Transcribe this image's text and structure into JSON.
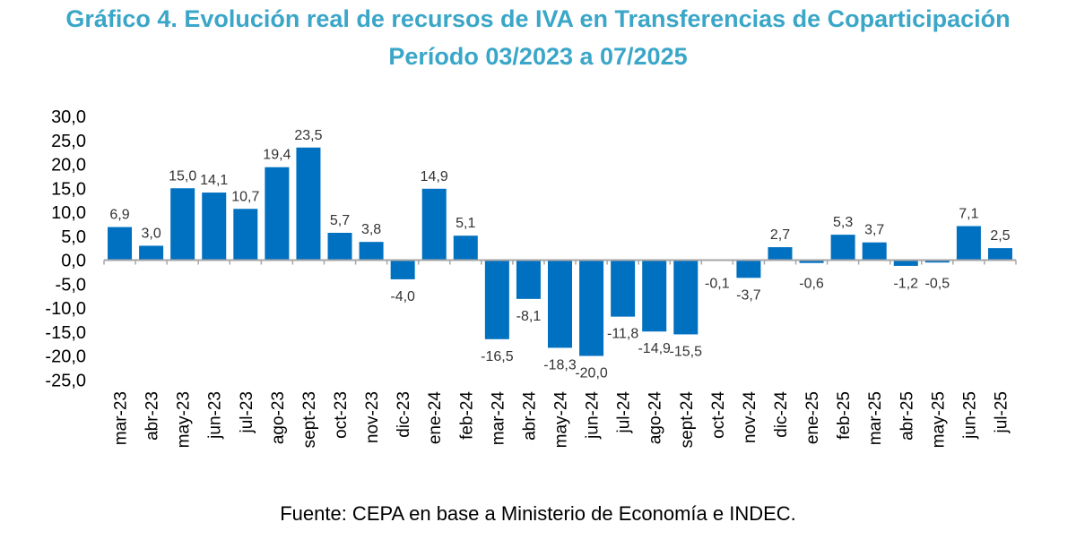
{
  "header": {
    "title_line1": "Gráfico 4. Evolución real de recursos de IVA en Transferencias de Coparticipación",
    "title_line2": "Período 03/2023 a 07/2025"
  },
  "footer": {
    "source": "Fuente: CEPA en base a Ministerio de Economía e INDEC."
  },
  "colors": {
    "bar": "#0070c0",
    "title": "#3aa6c8",
    "axis": "#a6a6a6"
  },
  "chart_data": {
    "type": "bar",
    "title": "Gráfico 4. Evolución real de recursos de IVA en Transferencias de Coparticipación",
    "subtitle": "Período 03/2023 a 07/2025",
    "xlabel": "",
    "ylabel": "",
    "ylim": [
      -25,
      30
    ],
    "yticks": [
      30,
      25,
      20,
      15,
      10,
      5,
      0,
      -5,
      -10,
      -15,
      -20,
      -25
    ],
    "ytick_labels": [
      "30,0",
      "25,0",
      "20,0",
      "15,0",
      "10,0",
      "5,0",
      "0,0",
      "-5,0",
      "-10,0",
      "-15,0",
      "-20,0",
      "-25,0"
    ],
    "grid": false,
    "legend": "none",
    "categories": [
      "mar-23",
      "abr-23",
      "may-23",
      "jun-23",
      "jul-23",
      "ago-23",
      "sept-23",
      "oct-23",
      "nov-23",
      "dic-23",
      "ene-24",
      "feb-24",
      "mar-24",
      "abr-24",
      "may-24",
      "jun-24",
      "jul-24",
      "ago-24",
      "sept-24",
      "oct-24",
      "nov-24",
      "dic-24",
      "ene-25",
      "feb-25",
      "mar-25",
      "abr-25",
      "may-25",
      "jun-25",
      "jul-25"
    ],
    "values": [
      6.9,
      3.0,
      15.0,
      14.1,
      10.7,
      19.4,
      23.5,
      5.7,
      3.8,
      -4.0,
      14.9,
      5.1,
      -16.5,
      -8.1,
      -18.3,
      -20.0,
      -11.8,
      -14.9,
      -15.5,
      -0.1,
      -3.7,
      2.7,
      -0.6,
      5.3,
      3.7,
      -1.2,
      -0.5,
      7.1,
      2.5
    ],
    "value_labels": [
      "6,9",
      "3,0",
      "15,0",
      "14,1",
      "10,7",
      "19,4",
      "23,5",
      "5,7",
      "3,8",
      "-4,0",
      "14,9",
      "5,1",
      "-16,5",
      "-8,1",
      "-18,3",
      "-20,0",
      "-11,8",
      "-14,9",
      "-15,5",
      "-0,1",
      "-3,7",
      "2,7",
      "-0,6",
      "5,3",
      "3,7",
      "-1,2",
      "-0,5",
      "7,1",
      "2,5"
    ]
  }
}
